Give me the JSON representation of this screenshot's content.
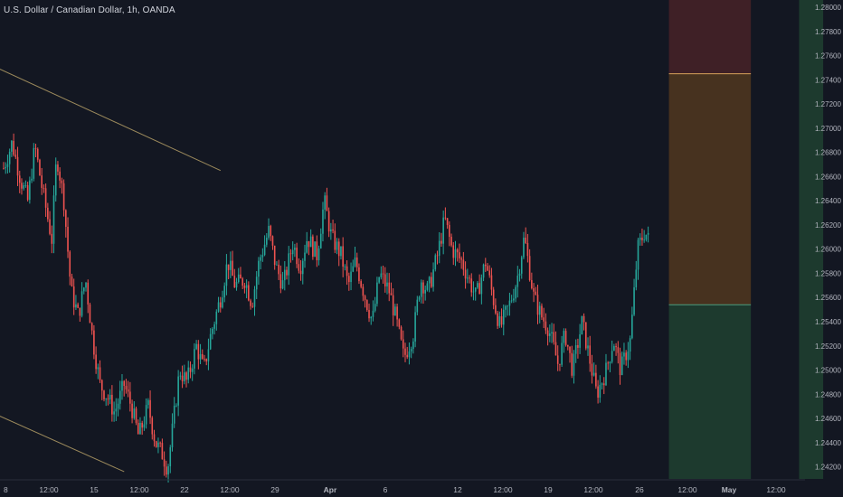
{
  "header": {
    "title": "U.S. Dollar / Canadian Dollar, 1h, OANDA"
  },
  "colors": {
    "background": "#131722",
    "bull": "#26a69a",
    "bear": "#ef5350",
    "trendline": "#9c8a5c",
    "stop_zone": "#3f2026",
    "risk_zone": "#47321f",
    "target_zone": "#1d3a2e",
    "stop_line": "#d7a35b",
    "entry_line": "#4e9c7f"
  },
  "chart_data": {
    "type": "candlestick",
    "title": "U.S. Dollar / Canadian Dollar, 1h, OANDA",
    "ylim": [
      1.241,
      1.2806
    ],
    "y_ticks": [
      "1.28000",
      "1.27800",
      "1.27600",
      "1.27400",
      "1.27200",
      "1.27000",
      "1.26800",
      "1.26600",
      "1.26400",
      "1.26200",
      "1.26000",
      "1.25800",
      "1.25600",
      "1.25400",
      "1.25200",
      "1.25000",
      "1.24800",
      "1.24600",
      "1.24400",
      "1.24200"
    ],
    "x_ticks": [
      "8",
      "12:00",
      "15",
      "12:00",
      "22",
      "12:00",
      "29",
      "Apr",
      "6",
      "12",
      "12:00",
      "19",
      "12:00",
      "26",
      "12:00",
      "May",
      "12:00"
    ],
    "bold_x_ticks": [
      "Apr",
      "May"
    ],
    "price_path": [
      [
        0,
        1.2667
      ],
      [
        0.35,
        1.2688
      ],
      [
        0.7,
        1.2658
      ],
      [
        1.0,
        1.264
      ],
      [
        1.3,
        1.2685
      ],
      [
        1.6,
        1.265
      ],
      [
        2.0,
        1.2608
      ],
      [
        2.2,
        1.2678
      ],
      [
        2.5,
        1.264
      ],
      [
        2.8,
        1.2565
      ],
      [
        3.1,
        1.2545
      ],
      [
        3.4,
        1.2575
      ],
      [
        3.7,
        1.2525
      ],
      [
        4.0,
        1.2488
      ],
      [
        4.3,
        1.2478
      ],
      [
        4.6,
        1.2465
      ],
      [
        5.0,
        1.2488
      ],
      [
        5.3,
        1.247
      ],
      [
        5.6,
        1.2445
      ],
      [
        6.0,
        1.247
      ],
      [
        6.3,
        1.244
      ],
      [
        6.6,
        1.243
      ],
      [
        6.8,
        1.2418
      ],
      [
        7.0,
        1.245
      ],
      [
        7.3,
        1.25
      ],
      [
        7.6,
        1.249
      ],
      [
        8.0,
        1.252
      ],
      [
        8.3,
        1.25
      ],
      [
        8.6,
        1.253
      ],
      [
        9.0,
        1.256
      ],
      [
        9.3,
        1.259
      ],
      [
        9.6,
        1.257
      ],
      [
        10.0,
        1.2575
      ],
      [
        10.3,
        1.2555
      ],
      [
        10.6,
        1.259
      ],
      [
        11.0,
        1.2615
      ],
      [
        11.3,
        1.2585
      ],
      [
        11.6,
        1.257
      ],
      [
        12.0,
        1.2605
      ],
      [
        12.3,
        1.2585
      ],
      [
        12.6,
        1.261
      ],
      [
        13.0,
        1.2595
      ],
      [
        13.3,
        1.264
      ],
      [
        13.6,
        1.261
      ],
      [
        14.0,
        1.2595
      ],
      [
        14.3,
        1.257
      ],
      [
        14.6,
        1.259
      ],
      [
        15.0,
        1.256
      ],
      [
        15.3,
        1.254
      ],
      [
        15.6,
        1.258
      ],
      [
        16.0,
        1.2565
      ],
      [
        16.3,
        1.254
      ],
      [
        16.6,
        1.251
      ],
      [
        17.0,
        1.253
      ],
      [
        17.3,
        1.2575
      ],
      [
        17.6,
        1.2565
      ],
      [
        18.0,
        1.2595
      ],
      [
        18.3,
        1.2625
      ],
      [
        18.6,
        1.26
      ],
      [
        19.0,
        1.259
      ],
      [
        19.3,
        1.2575
      ],
      [
        19.6,
        1.256
      ],
      [
        20.0,
        1.259
      ],
      [
        20.3,
        1.256
      ],
      [
        20.6,
        1.2535
      ],
      [
        21.0,
        1.2555
      ],
      [
        21.3,
        1.2575
      ],
      [
        21.6,
        1.261
      ],
      [
        22.0,
        1.256
      ],
      [
        22.3,
        1.2545
      ],
      [
        22.6,
        1.2535
      ],
      [
        23.0,
        1.2505
      ],
      [
        23.3,
        1.253
      ],
      [
        23.6,
        1.25
      ],
      [
        24.0,
        1.254
      ],
      [
        24.3,
        1.251
      ],
      [
        24.6,
        1.248
      ],
      [
        25.0,
        1.25
      ],
      [
        25.3,
        1.2525
      ],
      [
        25.6,
        1.25
      ],
      [
        26.0,
        1.2525
      ],
      [
        26.3,
        1.26
      ],
      [
        26.6,
        1.2615
      ],
      [
        26.8,
        1.2605
      ]
    ],
    "trendlines": [
      {
        "x1": -0.5,
        "y1": 1.2752,
        "x2": 9.0,
        "y2": 1.2665
      },
      {
        "x1": -0.5,
        "y1": 1.2465,
        "x2": 5.0,
        "y2": 1.2416
      }
    ],
    "position": {
      "x_start": 27.6,
      "x_end": 31.0,
      "stop_top": 1.2806,
      "stop_level": 1.2745,
      "entry_level": 1.2554,
      "target_bottom": 1.241
    },
    "side_zone": {
      "x_start": 33.0,
      "x_end": 34.0,
      "top": 1.2806,
      "bottom": 1.241
    }
  }
}
